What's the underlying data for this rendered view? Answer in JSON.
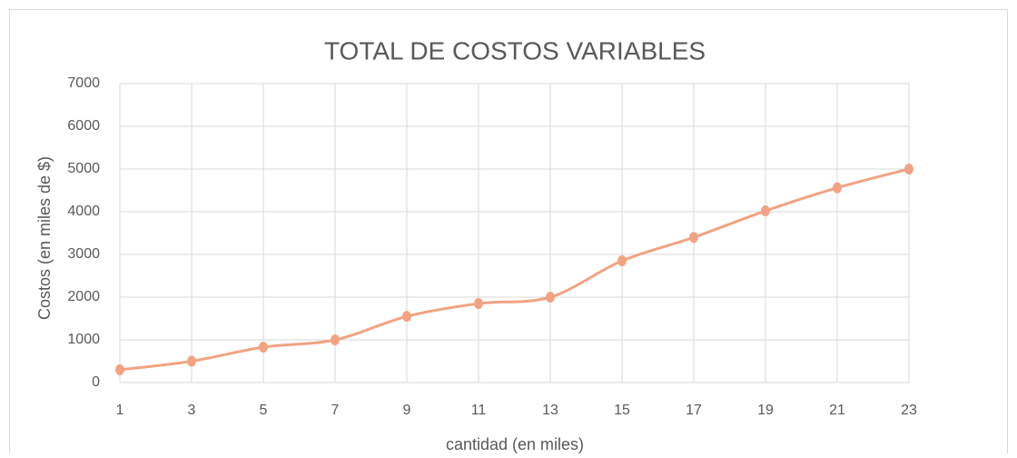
{
  "chart_data": {
    "type": "line",
    "title": "TOTAL DE COSTOS VARIABLES",
    "xlabel": "cantidad (en  miles)",
    "ylabel": "Costos (en  miles de $)",
    "x": [
      1,
      3,
      5,
      7,
      9,
      11,
      13,
      15,
      17,
      19,
      21,
      23
    ],
    "series": [
      {
        "name": "Costos variables",
        "color": "#f1a383",
        "values": [
          300,
          500,
          830,
          1000,
          1550,
          1850,
          2000,
          2850,
          3400,
          4020,
          4560,
          5000
        ]
      }
    ],
    "xlim": [
      1,
      23
    ],
    "xticks": [
      1,
      3,
      5,
      7,
      9,
      11,
      13,
      15,
      17,
      19,
      21,
      23
    ],
    "ylim": [
      0,
      7000
    ],
    "yticks": [
      0,
      1000,
      2000,
      3000,
      4000,
      5000,
      6000,
      7000
    ],
    "grid": true,
    "smooth": true
  }
}
